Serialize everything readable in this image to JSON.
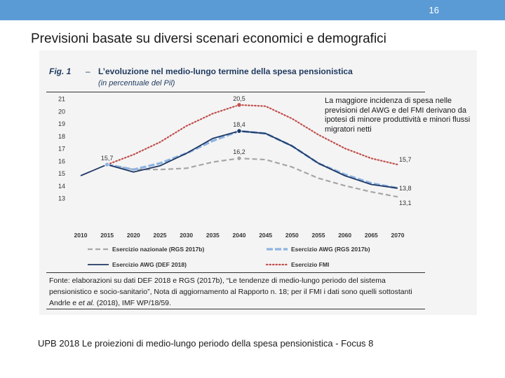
{
  "slide": {
    "page_number": "16",
    "title": "Previsioni basate su diversi scenari  economici e demografici",
    "annotation": "La maggiore incidenza di spesa nelle previsioni del AWG e del FMI derivano da ipotesi di minore produttività e minori flussi migratori netti",
    "footer": "UPB 2018 Le proiezioni di medio-lungo periodo della spesa pensionistica  - Focus 8"
  },
  "figure": {
    "label": "Fig. 1",
    "dash": "–",
    "title": "L’evoluzione nel medio-lungo termine della spesa pensionistica",
    "subtitle": "(in percentuale del Pil)",
    "source_1": "Fonte: elaborazioni su dati DEF 2018 e RGS (2017b), “Le tendenze di medio-lungo periodo del sistema pensionistico e socio-sanitario”, Nota di aggiornamento al Rapporto n. 18; per il FMI i dati sono quelli sottostanti Andrle e",
    "source_italic": "et al.",
    "source_2": "(2018), IMF WP/18/59."
  },
  "colors": {
    "topbar": "#5b9bd5",
    "nazionale": "#a6a6a6",
    "awg_rgs": "#8db3e2",
    "awg_def": "#1f3864",
    "fmi": "#c0504d"
  },
  "chart_data": {
    "type": "line",
    "title": "L’evoluzione nel medio-lungo termine della spesa pensionistica",
    "ylabel": "in percentuale del Pil",
    "xlabel": "",
    "ylim": [
      13,
      21
    ],
    "yticks": [
      "13",
      "14",
      "15",
      "16",
      "17",
      "18",
      "19",
      "20",
      "21"
    ],
    "x": [
      "2010",
      "2015",
      "2020",
      "2025",
      "2030",
      "2035",
      "2040",
      "2045",
      "2050",
      "2055",
      "2060",
      "2065",
      "2070"
    ],
    "series": [
      {
        "name": "Esercizio nazionale (RGS 2017b)",
        "style": "dashed",
        "color": "#a6a6a6",
        "values": [
          null,
          15.7,
          15.3,
          15.3,
          15.4,
          15.9,
          16.2,
          16.1,
          15.5,
          14.6,
          14.0,
          13.5,
          13.1
        ]
      },
      {
        "name": "Esercizio AWG (RGS 2017b)",
        "style": "dashed-wide",
        "color": "#8db3e2",
        "values": [
          null,
          15.7,
          15.3,
          15.8,
          16.6,
          17.6,
          18.4,
          18.2,
          17.2,
          15.8,
          14.9,
          14.2,
          13.8
        ]
      },
      {
        "name": "Esercizio AWG (DEF 2018)",
        "style": "solid",
        "color": "#1f3864",
        "values": [
          14.8,
          15.7,
          15.1,
          15.6,
          16.6,
          17.8,
          18.4,
          18.2,
          17.2,
          15.8,
          14.8,
          14.1,
          13.8
        ]
      },
      {
        "name": "Esercizio FMI",
        "style": "dotted",
        "color": "#c0504d",
        "values": [
          null,
          15.7,
          16.5,
          17.5,
          18.8,
          19.8,
          20.5,
          20.4,
          19.4,
          18.1,
          17.0,
          16.2,
          15.7
        ]
      }
    ],
    "data_labels": [
      {
        "series": 1,
        "index": 1,
        "text": "15,7"
      },
      {
        "series": 3,
        "index": 6,
        "text": "20,5"
      },
      {
        "series": 2,
        "index": 6,
        "text": "18,4"
      },
      {
        "series": 0,
        "index": 6,
        "text": "16,2"
      },
      {
        "series": 3,
        "index": 12,
        "text": "15,7"
      },
      {
        "series": 2,
        "index": 12,
        "text": "13,8"
      },
      {
        "series": 0,
        "index": 12,
        "text": "13,1"
      }
    ],
    "legend_position": "bottom"
  }
}
